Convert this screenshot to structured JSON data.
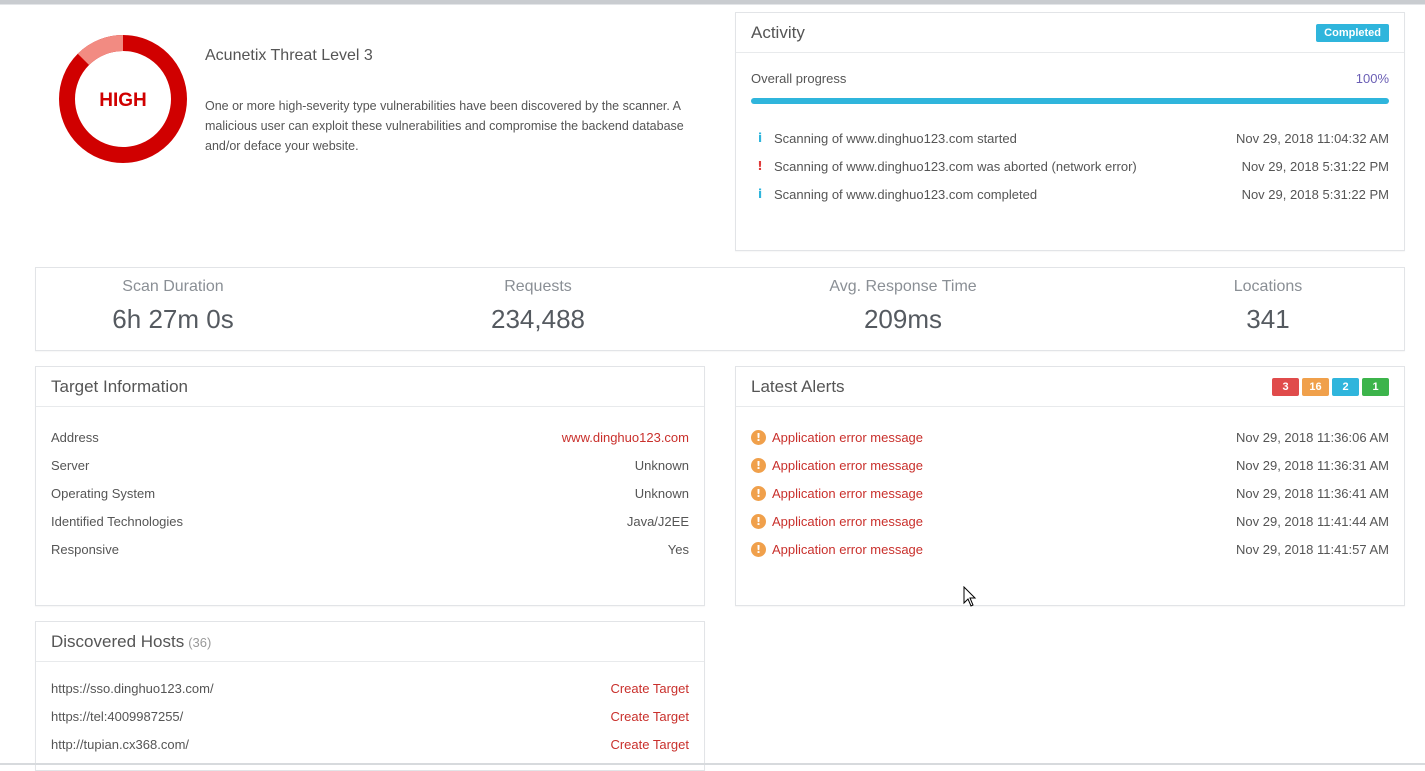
{
  "threat": {
    "level_label": "HIGH",
    "title": "Acunetix Threat Level 3",
    "description": "One or more high-severity type vulnerabilities have been discovered by the scanner. A malicious user can exploit these vulnerabilities and compromise the backend database and/or deface your website.",
    "colors": {
      "ring": "#d00000",
      "segment": "#f28b82"
    }
  },
  "activity": {
    "title": "Activity",
    "status_badge": "Completed",
    "progress_label": "Overall progress",
    "progress_value": "100%",
    "progress_fraction": 1.0,
    "events": [
      {
        "icon": "info-icon",
        "glyph": "i",
        "text": "Scanning of www.dinghuo123.com started",
        "time": "Nov 29, 2018 11:04:32 AM"
      },
      {
        "icon": "exclamation-icon",
        "glyph": "!",
        "text": "Scanning of www.dinghuo123.com was aborted (network error)",
        "time": "Nov 29, 2018 5:31:22 PM"
      },
      {
        "icon": "info-icon",
        "glyph": "i",
        "text": "Scanning of www.dinghuo123.com completed",
        "time": "Nov 29, 2018 5:31:22 PM"
      }
    ]
  },
  "stats": [
    {
      "label": "Scan Duration",
      "value": "6h 27m 0s"
    },
    {
      "label": "Requests",
      "value": "234,488"
    },
    {
      "label": "Avg. Response Time",
      "value": "209ms"
    },
    {
      "label": "Locations",
      "value": "341"
    }
  ],
  "target": {
    "title": "Target Information",
    "rows": [
      {
        "key": "Address",
        "value": "www.dinghuo123.com"
      },
      {
        "key": "Server",
        "value": "Unknown"
      },
      {
        "key": "Operating System",
        "value": "Unknown"
      },
      {
        "key": "Identified Technologies",
        "value": "Java/J2EE"
      },
      {
        "key": "Responsive",
        "value": "Yes"
      }
    ]
  },
  "alerts": {
    "title": "Latest Alerts",
    "badges": [
      {
        "value": "3",
        "color": "#e04b4b"
      },
      {
        "value": "16",
        "color": "#f0a04b"
      },
      {
        "value": "2",
        "color": "#2fb5dc"
      },
      {
        "value": "1",
        "color": "#3cb44b"
      }
    ],
    "items": [
      {
        "name": "Application error message",
        "time": "Nov 29, 2018 11:36:06 AM"
      },
      {
        "name": "Application error message",
        "time": "Nov 29, 2018 11:36:31 AM"
      },
      {
        "name": "Application error message",
        "time": "Nov 29, 2018 11:36:41 AM"
      },
      {
        "name": "Application error message",
        "time": "Nov 29, 2018 11:41:44 AM"
      },
      {
        "name": "Application error message",
        "time": "Nov 29, 2018 11:41:57 AM"
      }
    ]
  },
  "hosts": {
    "title": "Discovered Hosts",
    "count": "(36)",
    "action_label": "Create Target",
    "items": [
      {
        "url": "https://sso.dinghuo123.com/"
      },
      {
        "url": "https://tel:4009987255/"
      },
      {
        "url": "http://tupian.cx368.com/"
      }
    ]
  }
}
